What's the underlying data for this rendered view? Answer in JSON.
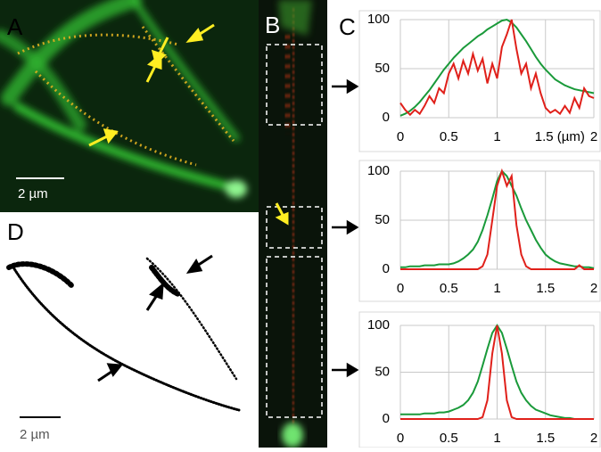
{
  "panels": {
    "a": "A",
    "b": "B",
    "c": "C",
    "d": "D"
  },
  "scale_bars": [
    "2 µm",
    "2 µm"
  ],
  "chart_data": [
    {
      "type": "line",
      "x": [
        0,
        0.05,
        0.1,
        0.15,
        0.2,
        0.25,
        0.3,
        0.35,
        0.4,
        0.45,
        0.5,
        0.55,
        0.6,
        0.65,
        0.7,
        0.75,
        0.8,
        0.85,
        0.9,
        0.95,
        1,
        1.05,
        1.1,
        1.15,
        1.2,
        1.25,
        1.3,
        1.35,
        1.4,
        1.45,
        1.5,
        1.55,
        1.6,
        1.65,
        1.7,
        1.75,
        1.8,
        1.85,
        1.9,
        1.95,
        2
      ],
      "series": [
        {
          "color": "#1a9a3a",
          "values": [
            2,
            4,
            7,
            11,
            16,
            22,
            28,
            35,
            42,
            49,
            55,
            61,
            66,
            71,
            75,
            79,
            83,
            86,
            90,
            93,
            96,
            99,
            100,
            97,
            92,
            85,
            78,
            70,
            62,
            55,
            49,
            44,
            39,
            36,
            33,
            31,
            29,
            28,
            27,
            26,
            25
          ]
        },
        {
          "color": "#e0201a",
          "values": [
            15,
            8,
            3,
            8,
            4,
            12,
            22,
            15,
            30,
            25,
            45,
            55,
            40,
            58,
            45,
            65,
            48,
            60,
            35,
            55,
            40,
            72,
            85,
            100,
            70,
            45,
            55,
            30,
            45,
            25,
            10,
            5,
            8,
            4,
            12,
            5,
            20,
            10,
            30,
            22,
            20
          ]
        }
      ],
      "xlim": [
        0,
        2
      ],
      "xticks": [
        0,
        0.5,
        1,
        {
          "value": 1.5,
          "label": "1.5 (µm)"
        },
        2
      ],
      "ylim": [
        0,
        100
      ],
      "yticks": [
        0,
        50,
        100
      ],
      "grid": true
    },
    {
      "type": "line",
      "x": [
        0,
        0.05,
        0.1,
        0.15,
        0.2,
        0.25,
        0.3,
        0.35,
        0.4,
        0.45,
        0.5,
        0.55,
        0.6,
        0.65,
        0.7,
        0.75,
        0.8,
        0.85,
        0.9,
        0.95,
        1,
        1.05,
        1.1,
        1.15,
        1.2,
        1.25,
        1.3,
        1.35,
        1.4,
        1.45,
        1.5,
        1.55,
        1.6,
        1.65,
        1.7,
        1.75,
        1.8,
        1.85,
        1.9,
        1.95,
        2
      ],
      "series": [
        {
          "color": "#1a9a3a",
          "values": [
            2,
            2,
            3,
            3,
            3,
            4,
            4,
            4,
            5,
            5,
            5,
            6,
            8,
            11,
            15,
            20,
            28,
            40,
            55,
            72,
            90,
            100,
            95,
            85,
            75,
            62,
            50,
            40,
            30,
            22,
            15,
            11,
            8,
            6,
            5,
            4,
            3,
            3,
            2,
            2,
            1
          ]
        },
        {
          "color": "#e0201a",
          "values": [
            0,
            0,
            0,
            0,
            0,
            0,
            0,
            0,
            0,
            0,
            0,
            0,
            0,
            0,
            0,
            0,
            0,
            3,
            15,
            50,
            85,
            100,
            85,
            95,
            45,
            15,
            3,
            0,
            0,
            0,
            0,
            0,
            0,
            0,
            0,
            0,
            0,
            4,
            0,
            0,
            0
          ]
        }
      ],
      "xlim": [
        0,
        2
      ],
      "xticks": [
        0,
        0.5,
        1,
        1.5,
        2
      ],
      "ylim": [
        0,
        100
      ],
      "yticks": [
        0,
        50,
        100
      ],
      "grid": true
    },
    {
      "type": "line",
      "x": [
        0,
        0.05,
        0.1,
        0.15,
        0.2,
        0.25,
        0.3,
        0.35,
        0.4,
        0.45,
        0.5,
        0.55,
        0.6,
        0.65,
        0.7,
        0.75,
        0.8,
        0.85,
        0.9,
        0.95,
        1,
        1.05,
        1.1,
        1.15,
        1.2,
        1.25,
        1.3,
        1.35,
        1.4,
        1.45,
        1.5,
        1.55,
        1.6,
        1.65,
        1.7,
        1.75,
        1.8,
        1.85,
        1.9,
        1.95,
        2
      ],
      "series": [
        {
          "color": "#1a9a3a",
          "values": [
            5,
            5,
            5,
            5,
            5,
            6,
            6,
            6,
            7,
            7,
            8,
            10,
            12,
            15,
            20,
            28,
            40,
            57,
            75,
            92,
            100,
            92,
            75,
            57,
            40,
            28,
            20,
            14,
            10,
            8,
            6,
            4,
            3,
            2,
            1,
            1,
            0,
            0,
            0,
            0,
            0
          ]
        },
        {
          "color": "#e0201a",
          "values": [
            0,
            0,
            0,
            0,
            0,
            0,
            0,
            0,
            0,
            0,
            0,
            0,
            0,
            0,
            0,
            0,
            0,
            2,
            20,
            70,
            100,
            70,
            20,
            2,
            0,
            0,
            0,
            0,
            0,
            0,
            0,
            0,
            0,
            0,
            0,
            0,
            0,
            0,
            0,
            0,
            0
          ]
        }
      ],
      "xlim": [
        0,
        2
      ],
      "xticks": [
        0,
        0.5,
        1,
        1.5,
        2
      ],
      "ylim": [
        0,
        100
      ],
      "yticks": [
        0,
        50,
        100
      ],
      "grid": true
    }
  ]
}
